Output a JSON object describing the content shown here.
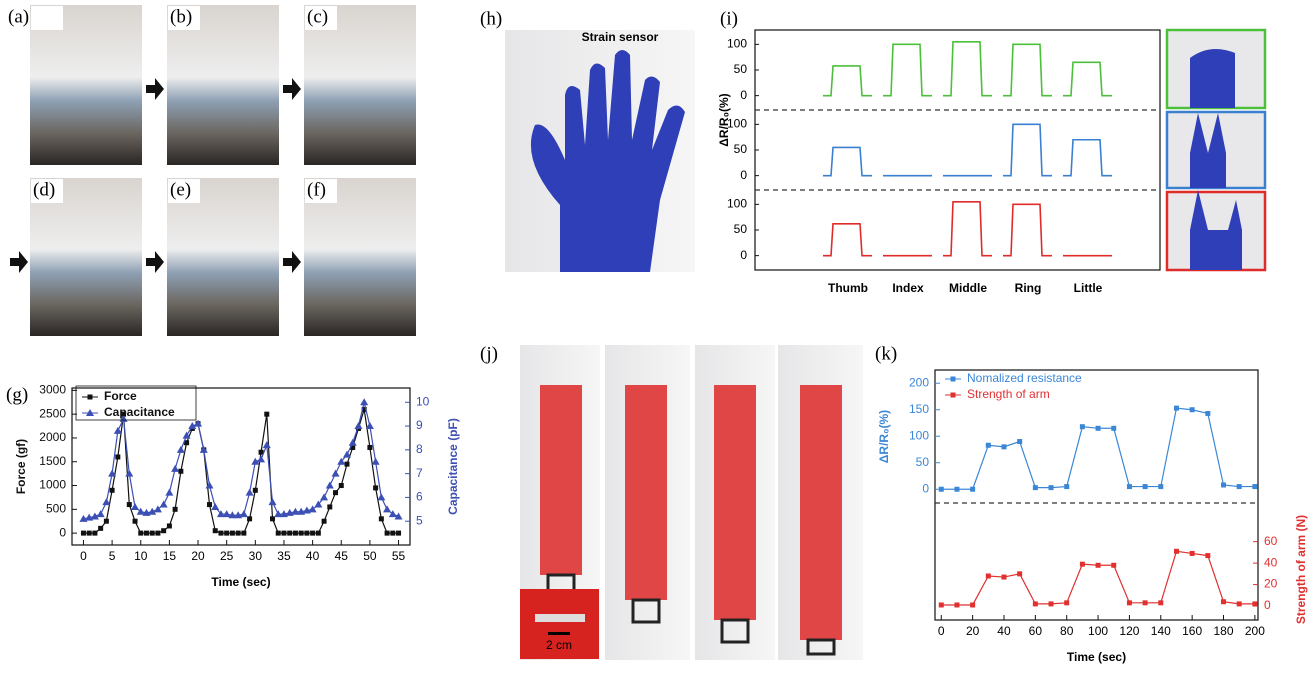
{
  "figure": {
    "panel_labels": [
      "(a)",
      "(b)",
      "(c)",
      "(d)",
      "(e)",
      "(f)",
      "(g)",
      "(h)",
      "(i)",
      "(j)",
      "(k)"
    ],
    "strain_sensor": "Strain sensor",
    "scale_bar": "2 cm"
  },
  "chart_data": [
    {
      "type": "line",
      "xlabel": "Time (sec)",
      "ylabel": "Force (gf)",
      "y2label": "Capacitance (pF)",
      "x": [
        0,
        1,
        2,
        3,
        4,
        5,
        6,
        7,
        8,
        9,
        10,
        11,
        12,
        13,
        14,
        15,
        16,
        17,
        18,
        19,
        20,
        21,
        22,
        23,
        24,
        25,
        26,
        27,
        28,
        29,
        30,
        31,
        32,
        33,
        34,
        35,
        36,
        37,
        38,
        39,
        40,
        41,
        42,
        43,
        44,
        45,
        46,
        47,
        48,
        49,
        50,
        51,
        52,
        53,
        54,
        55
      ],
      "series": [
        {
          "name": "Force",
          "color": "#111111",
          "marker": "square",
          "values": [
            0,
            0,
            0,
            100,
            250,
            900,
            1600,
            2500,
            600,
            250,
            0,
            0,
            0,
            0,
            50,
            150,
            500,
            1300,
            1900,
            2200,
            2300,
            1750,
            600,
            50,
            0,
            0,
            0,
            0,
            0,
            300,
            900,
            1700,
            2500,
            300,
            0,
            0,
            0,
            0,
            0,
            0,
            0,
            0,
            250,
            550,
            850,
            1000,
            1450,
            1800,
            2200,
            2600,
            1800,
            950,
            300,
            0,
            0,
            0
          ]
        },
        {
          "name": "Capacitance",
          "color": "#3c4fb4",
          "marker": "triangle",
          "axis": "y2",
          "values": [
            5.1,
            5.15,
            5.2,
            5.3,
            5.8,
            7.0,
            8.8,
            9.3,
            7.0,
            5.6,
            5.4,
            5.35,
            5.4,
            5.5,
            5.7,
            6.2,
            7.2,
            8.0,
            8.6,
            9.0,
            9.1,
            8.0,
            6.5,
            5.6,
            5.3,
            5.3,
            5.25,
            5.25,
            5.3,
            6.2,
            7.5,
            7.6,
            8.2,
            5.8,
            5.3,
            5.3,
            5.35,
            5.4,
            5.4,
            5.45,
            5.5,
            5.7,
            6.0,
            6.5,
            7.0,
            7.5,
            7.8,
            8.3,
            9.0,
            10.0,
            9.0,
            7.5,
            6.0,
            5.5,
            5.3,
            5.2
          ]
        }
      ],
      "xlim": [
        -2,
        57
      ],
      "xticks": [
        0,
        5,
        10,
        15,
        20,
        25,
        30,
        35,
        40,
        45,
        50,
        55
      ],
      "ylim": [
        -250,
        3050
      ],
      "yticks": [
        0,
        500,
        1000,
        1500,
        2000,
        2500,
        3000
      ],
      "y2lim": [
        4,
        10.6
      ],
      "y2ticks": [
        5,
        6,
        7,
        8,
        9,
        10
      ]
    },
    {
      "type": "pulse",
      "ylabel": "ΔR/R₀(%)",
      "categories": [
        "Thumb",
        "Index",
        "Middle",
        "Ring",
        "Little"
      ],
      "series": [
        {
          "color": "#4cbf3b",
          "values": [
            58,
            100,
            105,
            100,
            65
          ]
        },
        {
          "color": "#3b80d0",
          "values": [
            55,
            0,
            0,
            100,
            70
          ]
        },
        {
          "color": "#e02b2b",
          "values": [
            62,
            0,
            105,
            100,
            0
          ]
        }
      ],
      "ylim": [
        -28,
        128
      ],
      "yticks": [
        0,
        50,
        100
      ]
    },
    {
      "type": "line",
      "stacked": true,
      "xlabel": "Time (sec)",
      "ylabel": "ΔR/R₀(%)",
      "y2label": "Strength of arm (N)",
      "x": [
        0,
        10,
        20,
        30,
        40,
        50,
        60,
        70,
        80,
        90,
        100,
        110,
        120,
        130,
        140,
        150,
        160,
        170,
        180,
        190,
        200
      ],
      "series": [
        {
          "name": "Nomalized resistance",
          "color": "#3b87d6",
          "marker": "square",
          "values": [
            0,
            0,
            0,
            83,
            80,
            90,
            3,
            3,
            5,
            118,
            115,
            115,
            5,
            5,
            5,
            153,
            150,
            143,
            8,
            5,
            5
          ]
        },
        {
          "name": "Strength of arm",
          "color": "#e03030",
          "marker": "square",
          "axis": "y2",
          "values": [
            1,
            1,
            1,
            28,
            27,
            30,
            2,
            2,
            3,
            39,
            38,
            38,
            3,
            3,
            3,
            51,
            49,
            47,
            4,
            2,
            2
          ]
        }
      ],
      "xlim": [
        -4,
        202
      ],
      "xticks": [
        0,
        20,
        40,
        60,
        80,
        100,
        120,
        140,
        160,
        180,
        200
      ],
      "ylim": [
        -26,
        225
      ],
      "yticks": [
        0,
        50,
        100,
        150,
        200
      ],
      "y2lim": [
        -13,
        96
      ],
      "y2ticks": [
        0,
        20,
        40,
        60
      ]
    }
  ]
}
